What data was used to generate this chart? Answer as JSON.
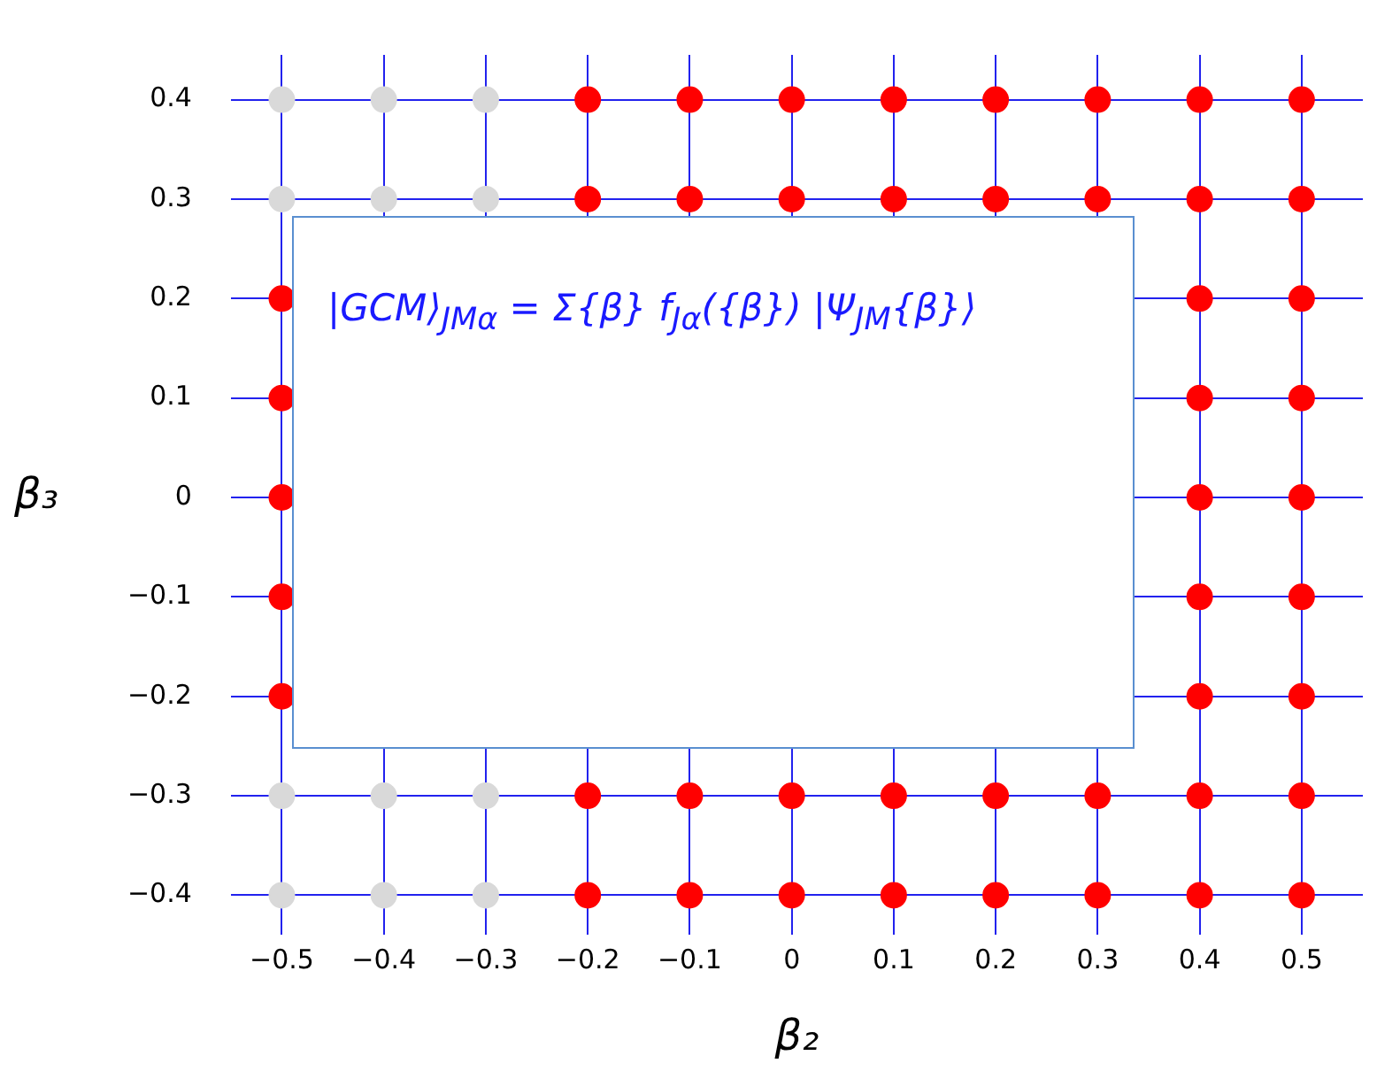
{
  "chart_data": {
    "type": "scatter",
    "xlabel": "β₂",
    "ylabel": "β₃",
    "annotations": [
      "|GCM⟩$_{JMα}$ = Σ{β} f$_{Jα}$({β}) |Ψ$_{JM}${β}⟩"
    ],
    "series": [
      {
        "color": "#ff0000",
        "x": [
          -0.2,
          -0.1,
          0,
          0.1,
          0.2,
          0.3,
          0.4,
          0.5,
          -0.2,
          -0.1,
          0,
          0.1,
          0.2,
          0.3,
          0.4,
          0.5,
          -0.5,
          0.4,
          0.5,
          -0.5,
          0.4,
          0.5,
          -0.5,
          0.4,
          0.5,
          -0.5,
          0.4,
          0.5,
          -0.5,
          0.4,
          0.5,
          -0.2,
          -0.1,
          0,
          0.1,
          0.2,
          0.3,
          0.4,
          0.5,
          -0.2,
          -0.1,
          0,
          0.1,
          0.2,
          0.3,
          0.4,
          0.5
        ],
        "values": [
          0.4,
          0.4,
          0.4,
          0.4,
          0.4,
          0.4,
          0.4,
          0.4,
          0.3,
          0.3,
          0.3,
          0.3,
          0.3,
          0.3,
          0.3,
          0.3,
          0.2,
          0.2,
          0.2,
          0.1,
          0.1,
          0.1,
          0,
          0,
          0,
          -0.1,
          -0.1,
          -0.1,
          -0.2,
          -0.2,
          -0.2,
          -0.3,
          -0.3,
          -0.3,
          -0.3,
          -0.3,
          -0.3,
          -0.3,
          -0.3,
          -0.4,
          -0.4,
          -0.4,
          -0.4,
          -0.4,
          -0.4,
          -0.4,
          -0.4
        ]
      },
      {
        "color": "#d9d9d9",
        "x": [
          -0.5,
          -0.4,
          -0.3,
          -0.5,
          -0.4,
          -0.3,
          -0.5,
          -0.4,
          -0.3,
          -0.5,
          -0.4,
          -0.3
        ],
        "values": [
          0.4,
          0.4,
          0.4,
          0.3,
          0.3,
          0.3,
          -0.3,
          -0.3,
          -0.3,
          -0.4,
          -0.4,
          -0.4
        ]
      }
    ],
    "xlim": [
      -0.55,
      0.56
    ],
    "ylim": [
      -0.44,
      0.445
    ],
    "xticks": [
      -0.5,
      -0.4,
      -0.3,
      -0.2,
      -0.1,
      0,
      0.1,
      0.2,
      0.3,
      0.4,
      0.5
    ],
    "yticks": [
      -0.4,
      -0.3,
      -0.2,
      -0.1,
      0,
      0.1,
      0.2,
      0.3,
      0.4
    ],
    "grid": true,
    "marker": "circle",
    "legend": false
  }
}
